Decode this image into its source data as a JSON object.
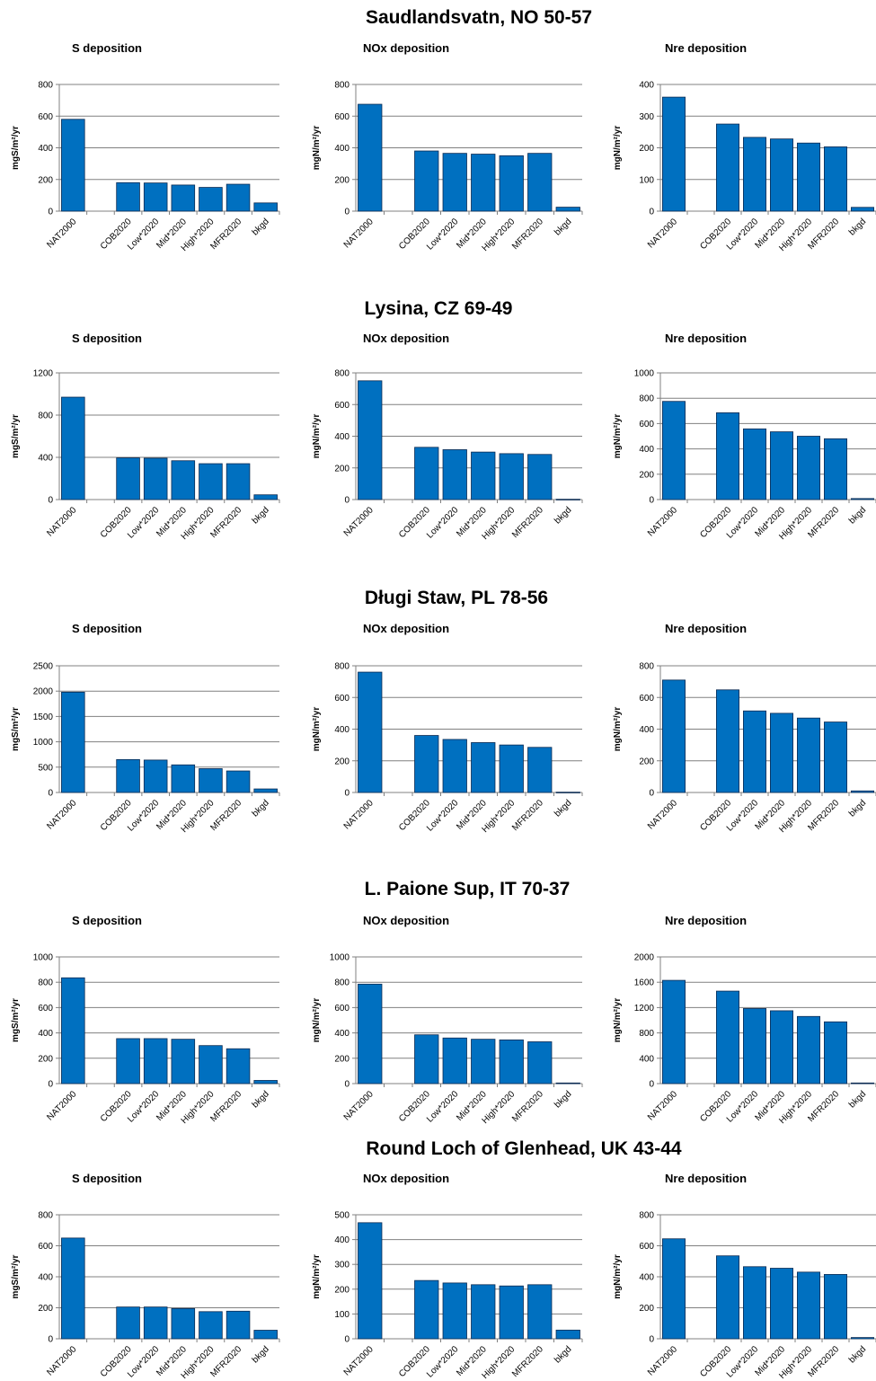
{
  "chart_data": [
    {
      "site": "Saudlandsvatn, NO 50-57",
      "charts": [
        {
          "type": "bar",
          "title": "S deposition",
          "ylabel": "mgS/m²/yr",
          "ylim": [
            0,
            800
          ],
          "yticks": [
            0,
            200,
            400,
            600,
            800
          ],
          "categories": [
            "NAT2000",
            "",
            "COB2020",
            "Low*2020",
            "Mid*2020",
            "High*2020",
            "MFR2020",
            "bkgd"
          ],
          "values": [
            580,
            null,
            180,
            178,
            165,
            150,
            170,
            52
          ]
        },
        {
          "type": "bar",
          "title": "NOx deposition",
          "ylabel": "mgN/m²/yr",
          "ylim": [
            0,
            800
          ],
          "yticks": [
            0,
            200,
            400,
            600,
            800
          ],
          "categories": [
            "NAT2000",
            "",
            "COB2020",
            "Low*2020",
            "Mid*2020",
            "High*2020",
            "MFR2020",
            "bkgd"
          ],
          "values": [
            675,
            null,
            380,
            365,
            360,
            350,
            365,
            25
          ]
        },
        {
          "type": "bar",
          "title": "Nre deposition",
          "ylabel": "mgN/m²/yr",
          "ylim": [
            0,
            400
          ],
          "yticks": [
            0,
            100,
            200,
            300,
            400
          ],
          "categories": [
            "NAT2000",
            "",
            "COB2020",
            "Low*2020",
            "Mid*2020",
            "High*2020",
            "MFR2020",
            "bkgd"
          ],
          "values": [
            360,
            null,
            275,
            233,
            228,
            215,
            203,
            12
          ]
        }
      ]
    },
    {
      "site": "Lysina, CZ 69-49",
      "charts": [
        {
          "type": "bar",
          "title": "S deposition",
          "ylabel": "mgS/m²/yr",
          "ylim": [
            0,
            1200
          ],
          "yticks": [
            0,
            400,
            800,
            1200
          ],
          "categories": [
            "NAT2000",
            "",
            "COB2020",
            "Low*2020",
            "Mid*2020",
            "High*2020",
            "MFR2020",
            "bkgd"
          ],
          "values": [
            970,
            null,
            395,
            392,
            368,
            340,
            340,
            45
          ]
        },
        {
          "type": "bar",
          "title": "NOx deposition",
          "ylabel": "mgN/m²/yr",
          "ylim": [
            0,
            800
          ],
          "yticks": [
            0,
            200,
            400,
            600,
            800
          ],
          "categories": [
            "NAT2000",
            "",
            "COB2020",
            "Low*2020",
            "Mid*2020",
            "High*2020",
            "MFR2020",
            "bkgd"
          ],
          "values": [
            750,
            null,
            330,
            315,
            300,
            290,
            285,
            2
          ]
        },
        {
          "type": "bar",
          "title": "Nre deposition",
          "ylabel": "mgN/m²/yr",
          "ylim": [
            0,
            1000
          ],
          "yticks": [
            0,
            200,
            400,
            600,
            800,
            1000
          ],
          "categories": [
            "NAT2000",
            "",
            "COB2020",
            "Low*2020",
            "Mid*2020",
            "High*2020",
            "MFR2020",
            "bkgd"
          ],
          "values": [
            775,
            null,
            685,
            558,
            535,
            500,
            480,
            8
          ]
        }
      ]
    },
    {
      "site": "Długi Staw, PL 78-56",
      "charts": [
        {
          "type": "bar",
          "title": "S deposition",
          "ylabel": "mgS/m²/yr",
          "ylim": [
            0,
            2500
          ],
          "yticks": [
            0,
            500,
            1000,
            1500,
            2000,
            2500
          ],
          "categories": [
            "NAT2000",
            "",
            "COB2020",
            "Low*2020",
            "Mid*2020",
            "High*2020",
            "MFR2020",
            "bkgd"
          ],
          "values": [
            1980,
            null,
            650,
            640,
            545,
            470,
            425,
            70
          ]
        },
        {
          "type": "bar",
          "title": "NOx deposition",
          "ylabel": "mgN/m²/yr",
          "ylim": [
            0,
            800
          ],
          "yticks": [
            0,
            200,
            400,
            600,
            800
          ],
          "categories": [
            "NAT2000",
            "",
            "COB2020",
            "Low*2020",
            "Mid*2020",
            "High*2020",
            "MFR2020",
            "bkgd"
          ],
          "values": [
            760,
            null,
            360,
            335,
            315,
            300,
            285,
            2
          ]
        },
        {
          "type": "bar",
          "title": "Nre deposition",
          "ylabel": "mgN/m²/yr",
          "ylim": [
            0,
            800
          ],
          "yticks": [
            0,
            200,
            400,
            600,
            800
          ],
          "categories": [
            "NAT2000",
            "",
            "COB2020",
            "Low*2020",
            "Mid*2020",
            "High*2020",
            "MFR2020",
            "bkgd"
          ],
          "values": [
            710,
            null,
            648,
            515,
            500,
            470,
            445,
            10
          ]
        }
      ]
    },
    {
      "site": "L. Paione Sup, IT 70-37",
      "charts": [
        {
          "type": "bar",
          "title": "S deposition",
          "ylabel": "mgS/m²/yr",
          "ylim": [
            0,
            1000
          ],
          "yticks": [
            0,
            200,
            400,
            600,
            800,
            1000
          ],
          "categories": [
            "NAT2000",
            "",
            "COB2020",
            "Low*2020",
            "Mid*2020",
            "High*2020",
            "MFR2020",
            "bkgd"
          ],
          "values": [
            835,
            null,
            355,
            355,
            350,
            300,
            275,
            25
          ]
        },
        {
          "type": "bar",
          "title": "NOx deposition",
          "ylabel": "mgN/m²/yr",
          "ylim": [
            0,
            1000
          ],
          "yticks": [
            0,
            200,
            400,
            600,
            800,
            1000
          ],
          "categories": [
            "NAT2000",
            "",
            "COB2020",
            "Low*2020",
            "Mid*2020",
            "High*2020",
            "MFR2020",
            "bkgd"
          ],
          "values": [
            785,
            null,
            385,
            360,
            350,
            345,
            330,
            5
          ]
        },
        {
          "type": "bar",
          "title": "Nre deposition",
          "ylabel": "mgN/m²/yr",
          "ylim": [
            0,
            2000
          ],
          "yticks": [
            0,
            400,
            800,
            1200,
            1600,
            2000
          ],
          "categories": [
            "NAT2000",
            "",
            "COB2020",
            "Low*2020",
            "Mid*2020",
            "High*2020",
            "MFR2020",
            "bkgd"
          ],
          "values": [
            1630,
            null,
            1460,
            1185,
            1150,
            1060,
            975,
            10
          ]
        }
      ]
    },
    {
      "site": "Round Loch of Glenhead, UK 43-44",
      "charts": [
        {
          "type": "bar",
          "title": "S deposition",
          "ylabel": "mgS/m²/yr",
          "ylim": [
            0,
            800
          ],
          "yticks": [
            0,
            200,
            400,
            600,
            800
          ],
          "categories": [
            "NAT2000",
            "",
            "COB2020",
            "Low*2020",
            "Mid*2020",
            "High*2020",
            "MFR2020",
            "bkgd"
          ],
          "values": [
            650,
            null,
            205,
            205,
            195,
            175,
            178,
            55
          ]
        },
        {
          "type": "bar",
          "title": "NOx deposition",
          "ylabel": "mgN/m²/yr",
          "ylim": [
            0,
            500
          ],
          "yticks": [
            0,
            100,
            200,
            300,
            400,
            500
          ],
          "categories": [
            "NAT2000",
            "",
            "COB2020",
            "Low*2020",
            "Mid*2020",
            "High*2020",
            "MFR2020",
            "bkgd"
          ],
          "values": [
            468,
            null,
            235,
            225,
            218,
            213,
            218,
            35
          ]
        },
        {
          "type": "bar",
          "title": "Nre deposition",
          "ylabel": "mgN/m²/yr",
          "ylim": [
            0,
            800
          ],
          "yticks": [
            0,
            200,
            400,
            600,
            800
          ],
          "categories": [
            "NAT2000",
            "",
            "COB2020",
            "Low*2020",
            "Mid*2020",
            "High*2020",
            "MFR2020",
            "bkgd"
          ],
          "values": [
            645,
            null,
            535,
            465,
            455,
            430,
            415,
            8
          ]
        }
      ]
    }
  ],
  "style": {
    "bar_color": "#0070c0",
    "bar_edge": "#0a2a52",
    "grid_color": "#808080",
    "axis_color": "#808080",
    "text_color": "#000000"
  }
}
